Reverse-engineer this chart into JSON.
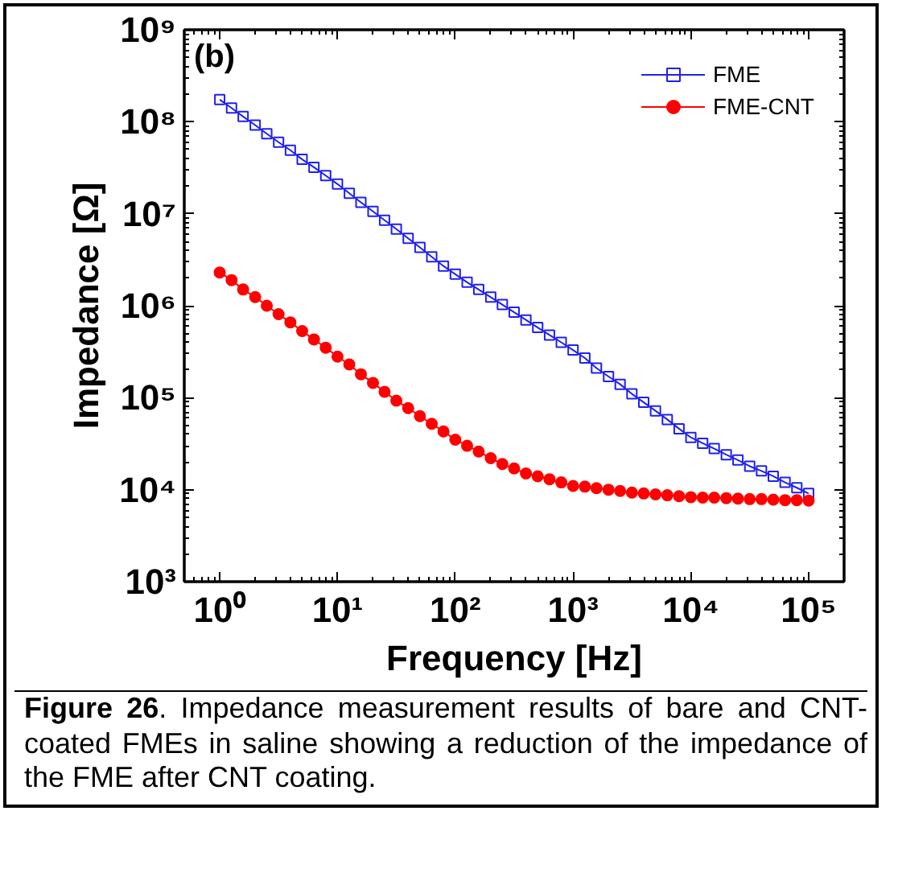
{
  "chart_data": {
    "type": "line",
    "xlabel": "Frequency [Hz]",
    "ylabel": "Impedance [Ω]",
    "annotations": [
      "(b)",
      "Figure 26. Impedance measurement results of bare and CNT-coated FMEs in saline showing a reduction of the impedance of the FME after CNT coating."
    ],
    "log": "xy",
    "legend": "top right",
    "grid": false,
    "xlim": [
      0.5,
      200000
    ],
    "ylim": [
      1000,
      1000000000
    ],
    "xticks": [
      {
        "value": 1,
        "label": "10⁰"
      },
      {
        "value": 10,
        "label": "10¹"
      },
      {
        "value": 100,
        "label": "10²"
      },
      {
        "value": 1000,
        "label": "10³"
      },
      {
        "value": 10000,
        "label": "10⁴"
      },
      {
        "value": 100000,
        "label": "10⁵"
      }
    ],
    "yticks": [
      {
        "value": 1000,
        "label": "10³"
      },
      {
        "value": 10000,
        "label": "10⁴"
      },
      {
        "value": 100000,
        "label": "10⁵"
      },
      {
        "value": 1000000,
        "label": "10⁶"
      },
      {
        "value": 10000000,
        "label": "10⁷"
      },
      {
        "value": 100000000,
        "label": "10⁸"
      },
      {
        "value": 1000000000,
        "label": "10⁹"
      }
    ],
    "x": [
      1,
      1.26,
      1.58,
      2,
      2.51,
      3.16,
      3.98,
      5.01,
      6.31,
      7.94,
      10,
      12.6,
      15.8,
      20,
      25.1,
      31.6,
      39.8,
      50.1,
      63.1,
      79.4,
      100,
      126,
      158,
      200,
      251,
      316,
      398,
      501,
      631,
      794,
      1000,
      1260,
      1580,
      2000,
      2510,
      3160,
      3980,
      5010,
      6310,
      7940,
      10000,
      12600,
      15800,
      20000,
      25100,
      31600,
      39800,
      50100,
      63100,
      79400,
      100000
    ],
    "series": [
      {
        "name": "FME",
        "color": "#2020ee",
        "marker": "square",
        "values": [
          174000000.0,
          141000000.0,
          114000000.0,
          92000000.0,
          74000000.0,
          60000000.0,
          49000000.0,
          39000000.0,
          32000000.0,
          26000000.0,
          21000000.0,
          16700000.0,
          13300000.0,
          10600000.0,
          8500000.0,
          6800000.0,
          5400000.0,
          4300000.0,
          3400000.0,
          2700000.0,
          2200000.0,
          1800000.0,
          1500000.0,
          1240000.0,
          1030000.0,
          850000.0,
          700000.0,
          580000.0,
          480000.0,
          400000.0,
          330000.0,
          270000.0,
          210000.0,
          170000.0,
          140000.0,
          110000.0,
          89000.0,
          72000.0,
          58000.0,
          46000.0,
          37000.0,
          32000.0,
          28000.0,
          24000.0,
          21000.0,
          18000.0,
          16000.0,
          14000.0,
          12000.0,
          10500.0,
          9100.0
        ]
      },
      {
        "name": "FME-CNT",
        "color": "#ff0000",
        "marker": "circle",
        "values": [
          2300000.0,
          1900000.0,
          1500000.0,
          1240000.0,
          1000000.0,
          810000.0,
          660000.0,
          530000.0,
          430000.0,
          350000.0,
          280000.0,
          230000.0,
          180000.0,
          145000.0,
          116000.0,
          93000.0,
          77000.0,
          63000.0,
          52000.0,
          43000.0,
          35000.0,
          30000.0,
          26000.0,
          22000.0,
          19000.0,
          17000.0,
          15000.0,
          14000.0,
          13000.0,
          12000.0,
          11000.0,
          10800.0,
          10400.0,
          10000.0,
          9700.0,
          9300.0,
          9100.0,
          8900.0,
          8700.0,
          8500.0,
          8300.0,
          8200.0,
          8200.0,
          8100.0,
          8000.0,
          7900.0,
          7900.0,
          7800.0,
          7700.0,
          7700.0,
          7600.0
        ]
      }
    ]
  }
}
